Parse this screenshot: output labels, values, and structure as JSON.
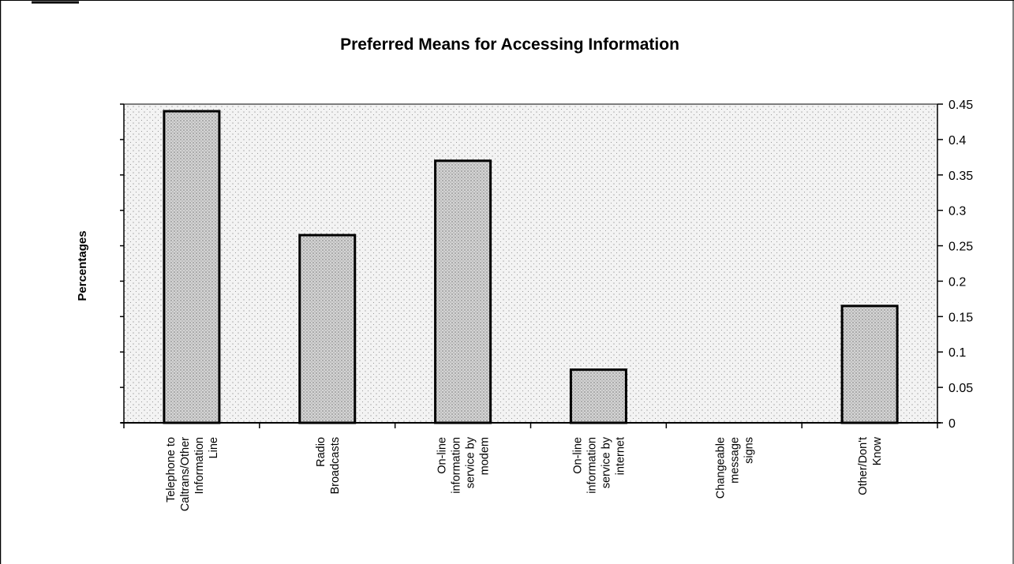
{
  "chart_data": {
    "type": "bar",
    "title": "Preferred Means for Accessing Information",
    "ylabel": "Percentages",
    "xlabel": "",
    "ylim": [
      0,
      0.45
    ],
    "yticks": [
      "0",
      "0.05",
      "0.1",
      "0.15",
      "0.2",
      "0.25",
      "0.3",
      "0.35",
      "0.4",
      "0.45"
    ],
    "categories": [
      [
        "Telephone to",
        "Caltrans/Other",
        "Information",
        "Line"
      ],
      [
        "Radio",
        "Broadcasts"
      ],
      [
        "On-line",
        "information",
        "service by",
        "modem"
      ],
      [
        "On-line",
        "information",
        "service by",
        "internet"
      ],
      [
        "Changeable",
        "message",
        "signs"
      ],
      [
        "Other/Don't",
        "Know"
      ]
    ],
    "values": [
      0.44,
      0.265,
      0.37,
      0.075,
      0.0,
      0.165
    ],
    "grid": false,
    "legend": "none",
    "y_axis_side": "right",
    "colors": {
      "plot_background": "#e9e9e9",
      "bar_fill": "#c4c4c4",
      "bar_stroke": "#000000"
    }
  }
}
